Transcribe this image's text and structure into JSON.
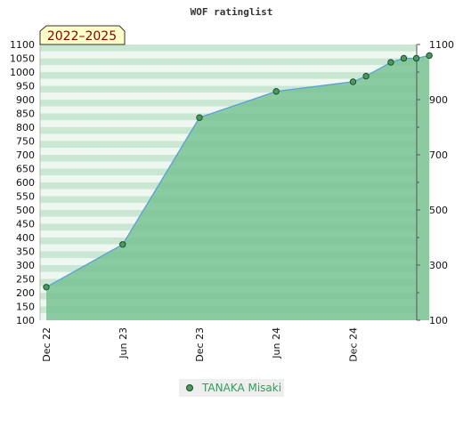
{
  "chart_data": {
    "type": "area",
    "title": "WOF ratinglist",
    "period_label": "2022–2025",
    "series": [
      {
        "name": "TANAKA Misaki",
        "x": [
          "2022-12",
          "2023-06",
          "2023-12",
          "2024-06",
          "2024-12",
          "2025-01",
          "2025-03",
          "2025-04",
          "2025-05",
          "2025-06"
        ],
        "values": [
          220,
          375,
          835,
          930,
          965,
          985,
          1035,
          1050,
          1050,
          1060
        ]
      }
    ],
    "x_tick_labels": [
      "Dec 22",
      "Jun 23",
      "Dec 23",
      "Jun 24",
      "Dec 24"
    ],
    "ylim": [
      100,
      1100
    ],
    "y_left_ticks": [
      100,
      150,
      200,
      250,
      300,
      350,
      400,
      450,
      500,
      550,
      600,
      650,
      700,
      750,
      800,
      850,
      900,
      950,
      1000,
      1050,
      1100
    ],
    "y_right_ticks": [
      100,
      300,
      500,
      700,
      900,
      1100
    ],
    "legend": "bottom-center",
    "colors": {
      "fill": "#7cc495",
      "line": "#5aa0d8",
      "marker": "#4a9a5e",
      "stripe_dark": "#c9e7d2",
      "stripe_light": "#eef8f1"
    }
  }
}
